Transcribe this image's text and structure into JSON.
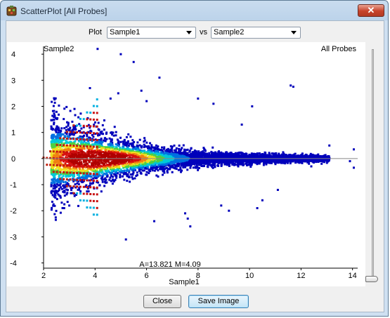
{
  "window": {
    "title": "ScatterPlot [All Probes]",
    "close_glyph": "✕"
  },
  "controls": {
    "plot_label": "Plot",
    "x_sample": "Sample1",
    "vs_label": "vs",
    "y_sample": "Sample2"
  },
  "buttons": {
    "close": "Close",
    "save_image": "Save Image"
  },
  "chart_data": {
    "type": "scatter",
    "corner_title": "All Probes",
    "xlabel": "Sample1",
    "ylabel": "Sample2",
    "xlim": [
      2,
      14.2
    ],
    "ylim": [
      -4.2,
      4.3
    ],
    "x_ticks": [
      2,
      4,
      6,
      8,
      10,
      12,
      14
    ],
    "y_ticks": [
      -4,
      -3,
      -2,
      -1,
      0,
      1,
      2,
      3,
      4
    ],
    "readout": "A=13.821 M=4.09",
    "reference_line_y": 0,
    "density_colors": [
      "#0000bb",
      "#0070e0",
      "#00c8d8",
      "#50d040",
      "#f0e020",
      "#f08010",
      "#d81010",
      "#b00000"
    ],
    "outliers": [
      {
        "x": 4.1,
        "y": 4.2
      },
      {
        "x": 5.0,
        "y": 4.0
      },
      {
        "x": 5.5,
        "y": 3.7
      },
      {
        "x": 6.5,
        "y": 3.1
      },
      {
        "x": 4.9,
        "y": 2.5
      },
      {
        "x": 3.8,
        "y": 2.7
      },
      {
        "x": 4.6,
        "y": 2.3
      },
      {
        "x": 6.0,
        "y": 2.2
      },
      {
        "x": 5.8,
        "y": 2.6
      },
      {
        "x": 8.0,
        "y": 2.3
      },
      {
        "x": 8.6,
        "y": 2.1
      },
      {
        "x": 10.1,
        "y": 2.0
      },
      {
        "x": 11.6,
        "y": 2.8
      },
      {
        "x": 11.7,
        "y": 2.75
      },
      {
        "x": 13.1,
        "y": 0.5
      },
      {
        "x": 13.9,
        "y": -0.1
      },
      {
        "x": 14.05,
        "y": 0.35
      },
      {
        "x": 14.05,
        "y": -0.35
      },
      {
        "x": 7.5,
        "y": -2.1
      },
      {
        "x": 7.6,
        "y": -2.3
      },
      {
        "x": 7.7,
        "y": -2.6
      },
      {
        "x": 5.2,
        "y": -3.1
      },
      {
        "x": 8.9,
        "y": -1.8
      },
      {
        "x": 9.2,
        "y": -2.0
      },
      {
        "x": 10.5,
        "y": -1.6
      },
      {
        "x": 10.3,
        "y": -1.9
      },
      {
        "x": 11.1,
        "y": -1.2
      },
      {
        "x": 12.4,
        "y": -0.3
      },
      {
        "x": 12.8,
        "y": -0.2
      },
      {
        "x": 6.3,
        "y": -2.4
      },
      {
        "x": 9.7,
        "y": 1.3
      },
      {
        "x": 3.0,
        "y": -1.8
      },
      {
        "x": 2.8,
        "y": -1.9
      },
      {
        "x": 3.2,
        "y": 1.9
      }
    ]
  }
}
